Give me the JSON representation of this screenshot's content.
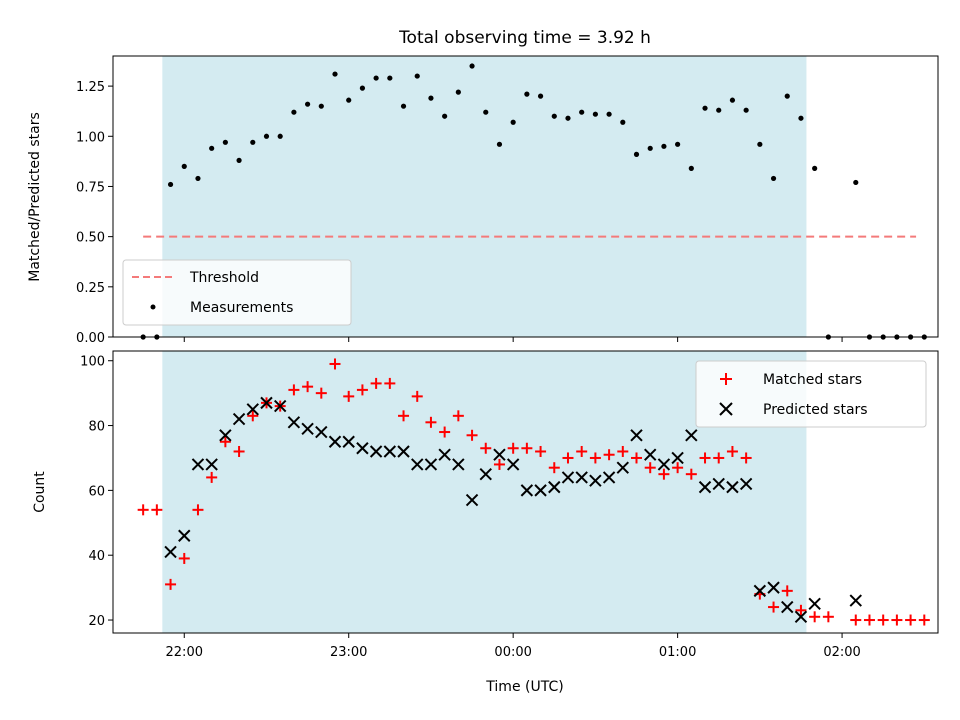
{
  "chart_data": [
    {
      "type": "scatter",
      "title": "Total observing time = 3.92 h",
      "xlabel": "",
      "ylabel": "Matched/Predicted stars",
      "xlim": [
        "21:34",
        "02:35"
      ],
      "ylim": [
        0,
        1.4
      ],
      "yticks": [
        0.0,
        0.25,
        0.5,
        0.75,
        1.0,
        1.25
      ],
      "ytick_labels": [
        "0.00",
        "0.25",
        "0.50",
        "0.75",
        "1.00",
        "1.25"
      ],
      "shaded_region": {
        "from": "21:52",
        "to": "01:47",
        "color": "#d4ebf1"
      },
      "threshold": {
        "name": "Threshold",
        "value": 0.5,
        "from": "21:45",
        "to": "02:27",
        "color": "#f47a7a",
        "style": "dashed"
      },
      "legend": {
        "location": "lower-left",
        "entries": [
          "Threshold",
          "Measurements"
        ]
      },
      "series": [
        {
          "name": "Measurements",
          "color": "#000000",
          "marker": "dot",
          "points": [
            [
              "21:45",
              0.0
            ],
            [
              "21:50",
              0.0
            ],
            [
              "21:55",
              0.76
            ],
            [
              "22:00",
              0.85
            ],
            [
              "22:05",
              0.79
            ],
            [
              "22:10",
              0.94
            ],
            [
              "22:15",
              0.97
            ],
            [
              "22:20",
              0.88
            ],
            [
              "22:25",
              0.97
            ],
            [
              "22:30",
              1.0
            ],
            [
              "22:35",
              1.0
            ],
            [
              "22:40",
              1.12
            ],
            [
              "22:45",
              1.16
            ],
            [
              "22:50",
              1.15
            ],
            [
              "22:55",
              1.31
            ],
            [
              "23:00",
              1.18
            ],
            [
              "23:05",
              1.24
            ],
            [
              "23:10",
              1.29
            ],
            [
              "23:15",
              1.29
            ],
            [
              "23:20",
              1.15
            ],
            [
              "23:25",
              1.3
            ],
            [
              "23:30",
              1.19
            ],
            [
              "23:35",
              1.1
            ],
            [
              "23:40",
              1.22
            ],
            [
              "23:45",
              1.35
            ],
            [
              "23:50",
              1.12
            ],
            [
              "23:55",
              0.96
            ],
            [
              "00:00",
              1.07
            ],
            [
              "00:05",
              1.21
            ],
            [
              "00:10",
              1.2
            ],
            [
              "00:15",
              1.1
            ],
            [
              "00:20",
              1.09
            ],
            [
              "00:25",
              1.12
            ],
            [
              "00:30",
              1.11
            ],
            [
              "00:35",
              1.11
            ],
            [
              "00:40",
              1.07
            ],
            [
              "00:45",
              0.91
            ],
            [
              "00:50",
              0.94
            ],
            [
              "00:55",
              0.95
            ],
            [
              "01:00",
              0.96
            ],
            [
              "01:05",
              0.84
            ],
            [
              "01:10",
              1.14
            ],
            [
              "01:15",
              1.13
            ],
            [
              "01:20",
              1.18
            ],
            [
              "01:25",
              1.13
            ],
            [
              "01:30",
              0.96
            ],
            [
              "01:35",
              0.79
            ],
            [
              "01:40",
              1.2
            ],
            [
              "01:45",
              1.09
            ],
            [
              "01:50",
              0.84
            ],
            [
              "01:55",
              0.0
            ],
            [
              "02:05",
              0.77
            ],
            [
              "02:10",
              0.0
            ],
            [
              "02:15",
              0.0
            ],
            [
              "02:20",
              0.0
            ],
            [
              "02:25",
              0.0
            ],
            [
              "02:30",
              0.0
            ]
          ]
        }
      ]
    },
    {
      "type": "scatter",
      "title": "",
      "xlabel": "Time (UTC)",
      "ylabel": "Count",
      "xlim": [
        "21:34",
        "02:35"
      ],
      "ylim": [
        16,
        103
      ],
      "yticks": [
        20,
        40,
        60,
        80,
        100
      ],
      "ytick_labels": [
        "20",
        "40",
        "60",
        "80",
        "100"
      ],
      "xticks": [
        "22:00",
        "23:00",
        "00:00",
        "01:00",
        "02:00"
      ],
      "xtick_labels": [
        "22:00",
        "23:00",
        "00:00",
        "01:00",
        "02:00"
      ],
      "shaded_region": {
        "from": "21:52",
        "to": "01:47",
        "color": "#d4ebf1"
      },
      "legend": {
        "location": "upper-right",
        "entries": [
          "Matched stars",
          "Predicted stars"
        ]
      },
      "series": [
        {
          "name": "Matched stars",
          "color": "#ff0000",
          "marker": "plus",
          "points": [
            [
              "21:45",
              54
            ],
            [
              "21:50",
              54
            ],
            [
              "21:55",
              31
            ],
            [
              "22:00",
              39
            ],
            [
              "22:05",
              54
            ],
            [
              "22:10",
              64
            ],
            [
              "22:15",
              75
            ],
            [
              "22:20",
              72
            ],
            [
              "22:25",
              83
            ],
            [
              "22:30",
              87
            ],
            [
              "22:35",
              86
            ],
            [
              "22:40",
              91
            ],
            [
              "22:45",
              92
            ],
            [
              "22:50",
              90
            ],
            [
              "22:55",
              99
            ],
            [
              "23:00",
              89
            ],
            [
              "23:05",
              91
            ],
            [
              "23:10",
              93
            ],
            [
              "23:15",
              93
            ],
            [
              "23:20",
              83
            ],
            [
              "23:25",
              89
            ],
            [
              "23:30",
              81
            ],
            [
              "23:35",
              78
            ],
            [
              "23:40",
              83
            ],
            [
              "23:45",
              77
            ],
            [
              "23:50",
              73
            ],
            [
              "23:55",
              68
            ],
            [
              "00:00",
              73
            ],
            [
              "00:05",
              73
            ],
            [
              "00:10",
              72
            ],
            [
              "00:15",
              67
            ],
            [
              "00:20",
              70
            ],
            [
              "00:25",
              72
            ],
            [
              "00:30",
              70
            ],
            [
              "00:35",
              71
            ],
            [
              "00:40",
              72
            ],
            [
              "00:45",
              70
            ],
            [
              "00:50",
              67
            ],
            [
              "00:55",
              65
            ],
            [
              "01:00",
              67
            ],
            [
              "01:05",
              65
            ],
            [
              "01:10",
              70
            ],
            [
              "01:15",
              70
            ],
            [
              "01:20",
              72
            ],
            [
              "01:25",
              70
            ],
            [
              "01:30",
              28
            ],
            [
              "01:35",
              24
            ],
            [
              "01:40",
              29
            ],
            [
              "01:45",
              23
            ],
            [
              "01:50",
              21
            ],
            [
              "01:55",
              21
            ],
            [
              "02:05",
              20
            ],
            [
              "02:10",
              20
            ],
            [
              "02:15",
              20
            ],
            [
              "02:20",
              20
            ],
            [
              "02:25",
              20
            ],
            [
              "02:30",
              20
            ]
          ]
        },
        {
          "name": "Predicted stars",
          "color": "#000000",
          "marker": "x",
          "points": [
            [
              "21:55",
              41
            ],
            [
              "22:00",
              46
            ],
            [
              "22:05",
              68
            ],
            [
              "22:10",
              68
            ],
            [
              "22:15",
              77
            ],
            [
              "22:20",
              82
            ],
            [
              "22:25",
              85
            ],
            [
              "22:30",
              87
            ],
            [
              "22:35",
              86
            ],
            [
              "22:40",
              81
            ],
            [
              "22:45",
              79
            ],
            [
              "22:50",
              78
            ],
            [
              "22:55",
              75
            ],
            [
              "23:00",
              75
            ],
            [
              "23:05",
              73
            ],
            [
              "23:10",
              72
            ],
            [
              "23:15",
              72
            ],
            [
              "23:20",
              72
            ],
            [
              "23:25",
              68
            ],
            [
              "23:30",
              68
            ],
            [
              "23:35",
              71
            ],
            [
              "23:40",
              68
            ],
            [
              "23:45",
              57
            ],
            [
              "23:50",
              65
            ],
            [
              "23:55",
              71
            ],
            [
              "00:00",
              68
            ],
            [
              "00:05",
              60
            ],
            [
              "00:10",
              60
            ],
            [
              "00:15",
              61
            ],
            [
              "00:20",
              64
            ],
            [
              "00:25",
              64
            ],
            [
              "00:30",
              63
            ],
            [
              "00:35",
              64
            ],
            [
              "00:40",
              67
            ],
            [
              "00:45",
              77
            ],
            [
              "00:50",
              71
            ],
            [
              "00:55",
              68
            ],
            [
              "01:00",
              70
            ],
            [
              "01:05",
              77
            ],
            [
              "01:10",
              61
            ],
            [
              "01:15",
              62
            ],
            [
              "01:20",
              61
            ],
            [
              "01:25",
              62
            ],
            [
              "01:30",
              29
            ],
            [
              "01:35",
              30
            ],
            [
              "01:40",
              24
            ],
            [
              "01:45",
              21
            ],
            [
              "01:50",
              25
            ],
            [
              "02:05",
              26
            ]
          ]
        }
      ]
    }
  ]
}
